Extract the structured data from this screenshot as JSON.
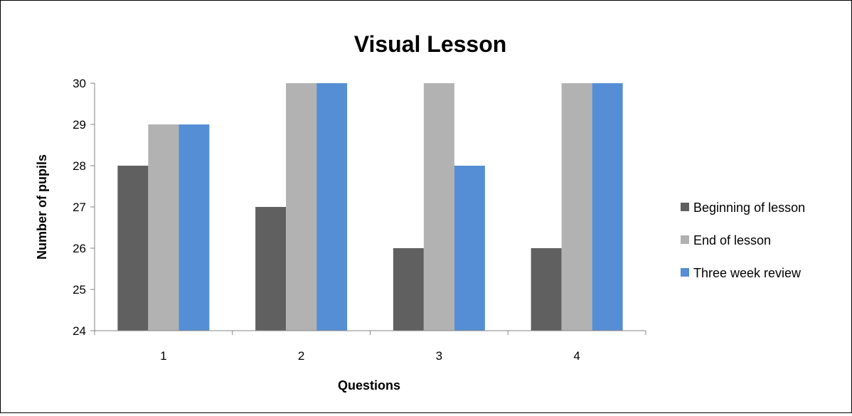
{
  "chart_data": {
    "type": "bar",
    "title": "Visual Lesson",
    "xlabel": "Questions",
    "ylabel": "Number of pupils",
    "categories": [
      "1",
      "2",
      "3",
      "4"
    ],
    "ylim": [
      24,
      30
    ],
    "yticks": [
      "24",
      "25",
      "26",
      "27",
      "28",
      "29",
      "30"
    ],
    "grid": false,
    "legend_position": "right",
    "series": [
      {
        "name": "Beginning of lesson",
        "color": "#606060",
        "values": [
          28,
          27,
          26,
          26
        ]
      },
      {
        "name": "End of lesson",
        "color": "#b2b2b2",
        "values": [
          29,
          30,
          30,
          30
        ]
      },
      {
        "name": "Three week review",
        "color": "#558ed5",
        "values": [
          29,
          30,
          28,
          30
        ]
      }
    ]
  }
}
